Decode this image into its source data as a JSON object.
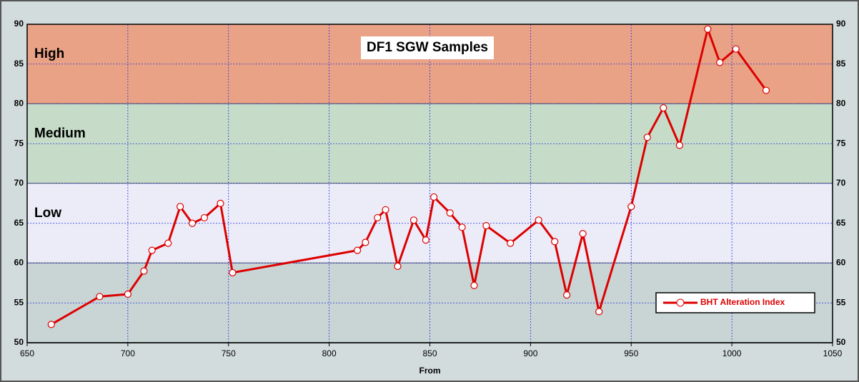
{
  "chart_data": {
    "type": "line",
    "title": "DF1 SGW Samples",
    "x_label": "From",
    "x": [
      662,
      686,
      700,
      708,
      712,
      720,
      726,
      732,
      738,
      746,
      752,
      814,
      818,
      824,
      828,
      834,
      842,
      848,
      852,
      860,
      866,
      872,
      878,
      890,
      904,
      912,
      918,
      926,
      934,
      950,
      958,
      966,
      974,
      988,
      994,
      1002,
      1017
    ],
    "series": [
      {
        "name": "BHT Alteration Index",
        "color": "#dd0000",
        "values": [
          52.3,
          55.8,
          56.1,
          59,
          61.6,
          62.5,
          67.1,
          65,
          65.7,
          67.5,
          58.8,
          61.6,
          62.6,
          65.7,
          66.7,
          59.6,
          65.4,
          62.9,
          68.3,
          66.3,
          64.5,
          57.2,
          64.7,
          62.5,
          65.4,
          62.7,
          56,
          63.7,
          53.9,
          67.1,
          75.8,
          79.5,
          74.8,
          89.4,
          85.2,
          86.9,
          81.7
        ]
      }
    ],
    "bands": [
      {
        "label": "High",
        "from": 80,
        "to": 90,
        "color": "#eaa286"
      },
      {
        "label": "Medium",
        "from": 70,
        "to": 80,
        "color": "#c6dcc8"
      },
      {
        "label": "Low",
        "from": 60,
        "to": 70,
        "color": "#ececf8"
      },
      {
        "from": 50,
        "to": 60,
        "color": "#c9d5d5"
      }
    ],
    "xlim": [
      650,
      1050
    ],
    "xticks": [
      650,
      700,
      750,
      800,
      850,
      900,
      950,
      1000,
      1050
    ],
    "ylim": [
      50,
      90
    ],
    "yticks": [
      50,
      55,
      60,
      65,
      70,
      75,
      80,
      85,
      90
    ],
    "grid": true,
    "legend": "lower right"
  }
}
